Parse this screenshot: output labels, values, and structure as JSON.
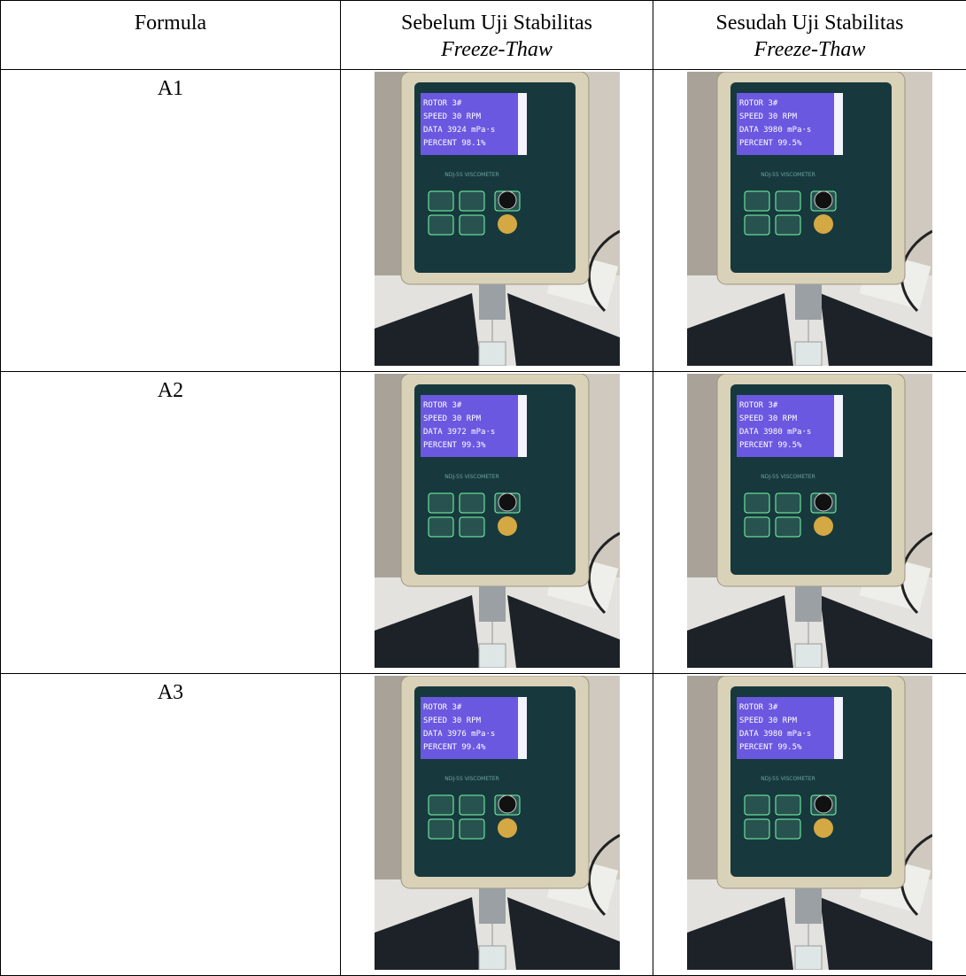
{
  "table": {
    "header": [
      "Formula",
      "Sebelum Uji Stabilitas",
      "Sesudah Uji Stabilitas"
    ],
    "header_sub": [
      "Freeze-Thaw",
      "Freeze-Thaw"
    ],
    "rows": [
      {
        "formula": "A1",
        "before": {
          "screen": [
            "ROTOR 3#",
            "SPEED 30 RPM",
            "DATA 3924 mPa·s",
            "PERCENT 98.1%"
          ],
          "model": "NDJ-5S VISCOMETER"
        },
        "after": {
          "screen": [
            "ROTOR 3#",
            "SPEED 30 RPM",
            "DATA 3980 mPa·s",
            "PERCENT 99.5%"
          ],
          "model": "NDJ-5S VISCOMETER"
        }
      },
      {
        "formula": "A2",
        "before": {
          "screen": [
            "ROTOR 3#",
            "SPEED 30 RPM",
            "DATA 3972 mPa·s",
            "PERCENT 99.3%"
          ],
          "model": "NDJ-5S VISCOMETER"
        },
        "after": {
          "screen": [
            "ROTOR 3#",
            "SPEED 30 RPM",
            "DATA 3980 mPa·s",
            "PERCENT 99.5%"
          ],
          "model": "NDJ-5S VISCOMETER"
        }
      },
      {
        "formula": "A3",
        "before": {
          "screen": [
            "ROTOR 3#",
            "SPEED 30 RPM",
            "DATA 3976 mPa·s",
            "PERCENT 99.4%"
          ],
          "model": "NDJ-5S VISCOMETER"
        },
        "after": {
          "screen": [
            "ROTOR 3#",
            "SPEED 30 RPM",
            "DATA 3980 mPa·s",
            "PERCENT 99.5%"
          ],
          "model": "NDJ-5S VISCOMETER"
        }
      }
    ]
  }
}
